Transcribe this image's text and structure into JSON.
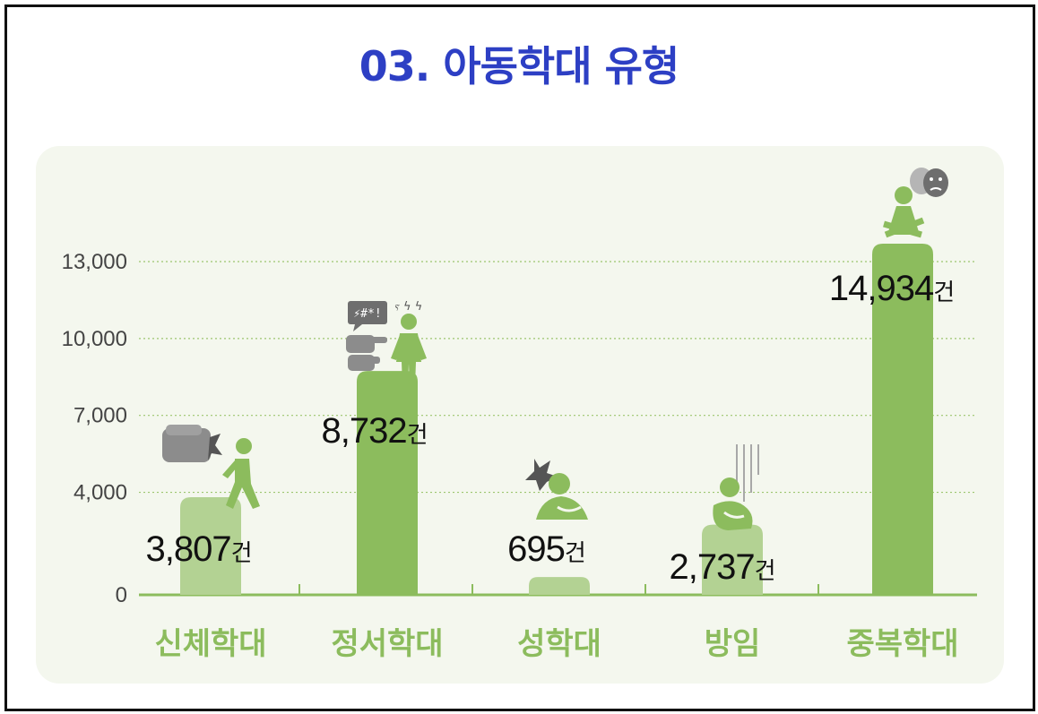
{
  "title": "03. 아동학대 유형",
  "chart_data": {
    "type": "bar",
    "categories": [
      "신체학대",
      "정서학대",
      "성학대",
      "방임",
      "중복학대"
    ],
    "values": [
      3807,
      8732,
      695,
      2737,
      14934
    ],
    "value_labels": [
      "3,807",
      "8,732",
      "695",
      "2,737",
      "14,934"
    ],
    "unit": "건",
    "yticks": [
      0,
      4000,
      7000,
      10000,
      13000
    ],
    "ytick_labels": [
      "0",
      "4,000",
      "7,000",
      "10,000",
      "13,000"
    ],
    "ylim": [
      0,
      13000
    ],
    "grid": true,
    "colors": {
      "bar_dark": "#8cbc5d",
      "bar_light": "#b3d293",
      "axis": "#8cbc5d",
      "grid": "#9cc66f",
      "icon_gray": "#8c8c8c"
    },
    "bar_tones": [
      "light",
      "dark",
      "light",
      "light",
      "dark"
    ],
    "icons": [
      "fist-person-walking-icon",
      "speech-pointing-person-icon",
      "crouching-person-burst-icon",
      "hugging-knees-person-icon",
      "sitting-person-masks-icon"
    ]
  }
}
